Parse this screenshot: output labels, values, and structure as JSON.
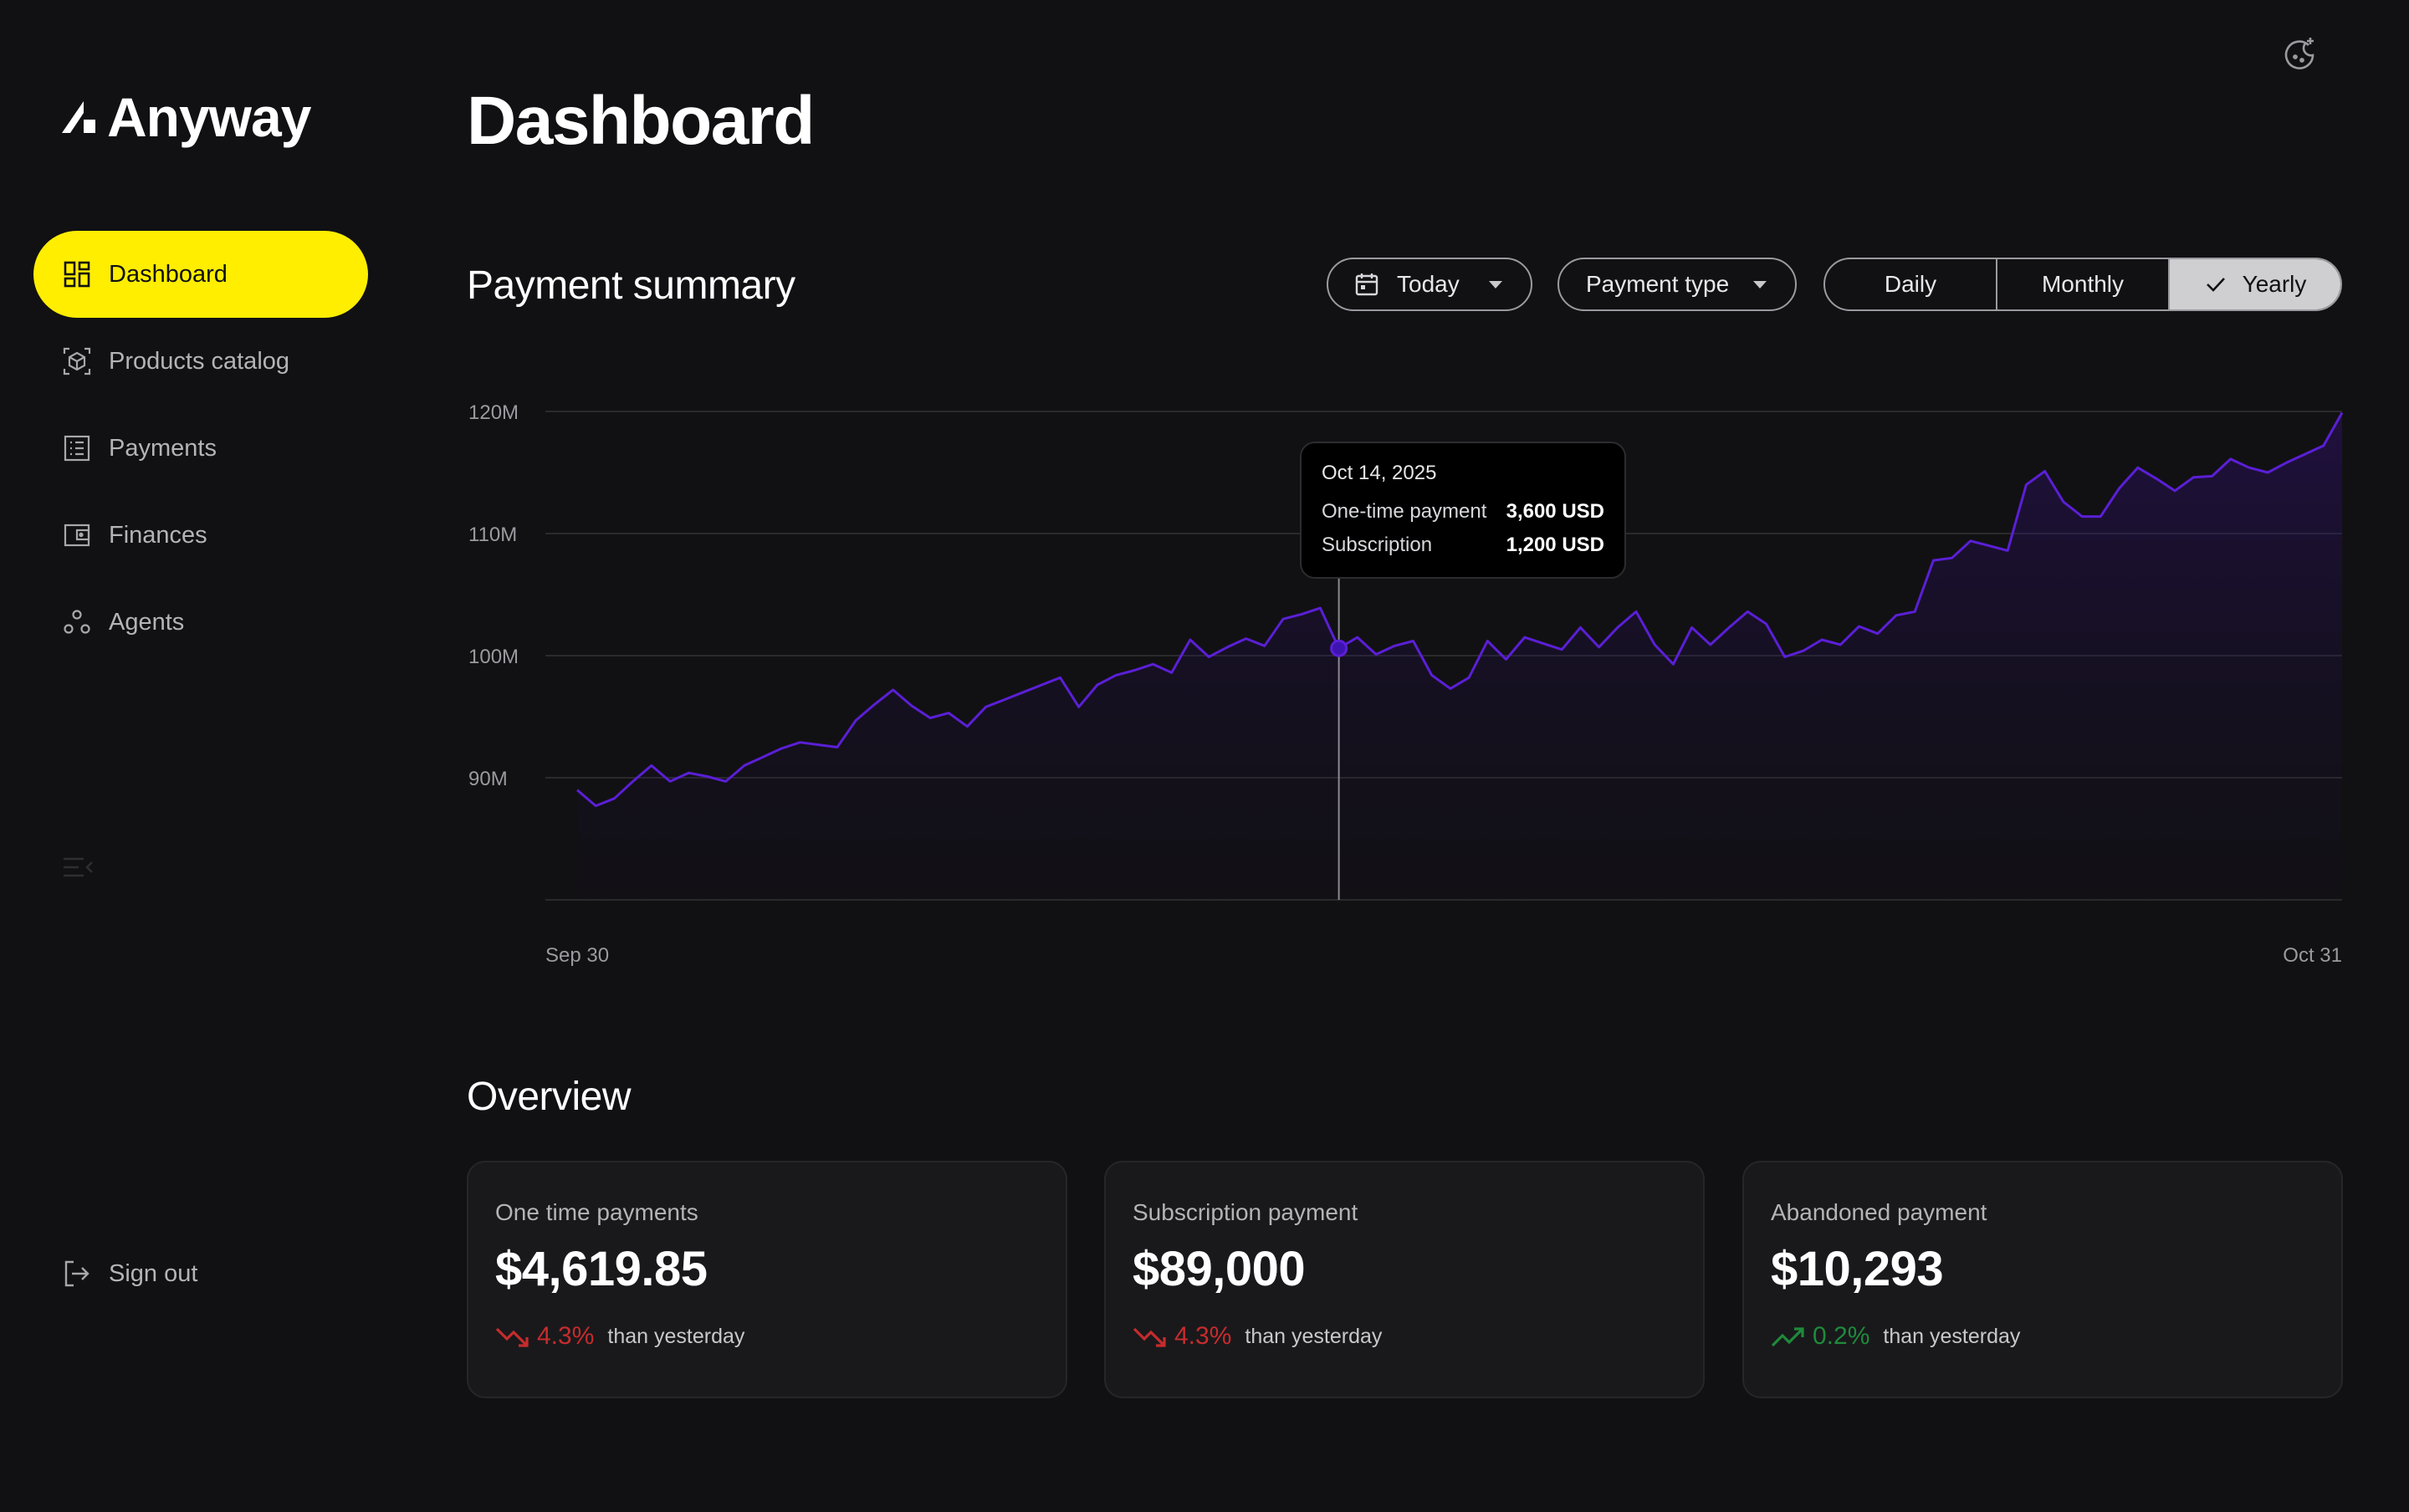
{
  "app": {
    "name": "Anyway"
  },
  "sidebar": {
    "items": [
      {
        "label": "Dashboard",
        "icon": "dashboard-icon",
        "active": true
      },
      {
        "label": "Products catalog",
        "icon": "package-icon",
        "active": false
      },
      {
        "label": "Payments",
        "icon": "list-icon",
        "active": false
      },
      {
        "label": "Finances",
        "icon": "wallet-icon",
        "active": false
      },
      {
        "label": "Agents",
        "icon": "agents-icon",
        "active": false
      }
    ],
    "signout_label": "Sign out",
    "accent_color": "#ffee00"
  },
  "header": {
    "title": "Dashboard"
  },
  "payment_summary": {
    "title": "Payment summary",
    "date_filter": "Today",
    "type_filter": "Payment type",
    "periods": [
      "Daily",
      "Monthly",
      "Yearly"
    ],
    "selected_period": "Yearly",
    "tooltip": {
      "date": "Oct 14, 2025",
      "rows": [
        {
          "label": "One-time payment",
          "value": "3,600 USD"
        },
        {
          "label": "Subscription",
          "value": "1,200 USD"
        }
      ]
    }
  },
  "chart_data": {
    "type": "area",
    "title": "",
    "xlabel": "",
    "ylabel": "",
    "x_tick_labels": [
      "Sep 30",
      "Oct 31"
    ],
    "y_ticks": [
      90,
      100,
      110,
      120
    ],
    "y_tick_labels": [
      "90M",
      "100M",
      "110M",
      "120M"
    ],
    "ylim": [
      80,
      120
    ],
    "grid": true,
    "line_color": "#5b1fd6",
    "highlight_index": 41,
    "values": [
      89.0,
      87.7,
      88.3,
      89.7,
      91.0,
      89.7,
      90.4,
      90.1,
      89.7,
      91.0,
      91.7,
      92.4,
      92.9,
      92.7,
      92.5,
      94.7,
      96.0,
      97.2,
      95.9,
      94.9,
      95.3,
      94.2,
      95.8,
      96.4,
      97.0,
      97.6,
      98.2,
      95.8,
      97.6,
      98.4,
      98.8,
      99.3,
      98.6,
      101.3,
      99.9,
      100.7,
      101.4,
      100.8,
      103.0,
      103.4,
      103.9,
      100.6,
      101.5,
      100.1,
      100.8,
      101.2,
      98.4,
      97.3,
      98.2,
      101.2,
      99.7,
      101.5,
      101.0,
      100.5,
      102.3,
      100.7,
      102.3,
      103.6,
      100.9,
      99.3,
      102.3,
      100.9,
      102.3,
      103.6,
      102.6,
      99.9,
      100.4,
      101.3,
      100.9,
      102.4,
      101.8,
      103.3,
      103.6,
      107.8,
      108.0,
      109.4,
      109.0,
      108.6,
      114.0,
      115.1,
      112.6,
      111.4,
      111.4,
      113.7,
      115.4,
      114.5,
      113.5,
      114.6,
      114.7,
      116.1,
      115.4,
      115.0,
      115.8,
      116.5,
      117.2,
      119.9
    ]
  },
  "overview": {
    "title": "Overview",
    "cards": [
      {
        "title": "One time payments",
        "value": "$4,619.85",
        "trend": "4.3%",
        "direction": "down",
        "note": "than yesterday"
      },
      {
        "title": "Subscription payment",
        "value": "$89,000",
        "trend": "4.3%",
        "direction": "down",
        "note": "than yesterday"
      },
      {
        "title": "Abandoned payment",
        "value": "$10,293",
        "trend": "0.2%",
        "direction": "up",
        "note": "than yesterday"
      }
    ],
    "colors": {
      "down": "#c62c2c",
      "up": "#1f8a3a"
    }
  }
}
